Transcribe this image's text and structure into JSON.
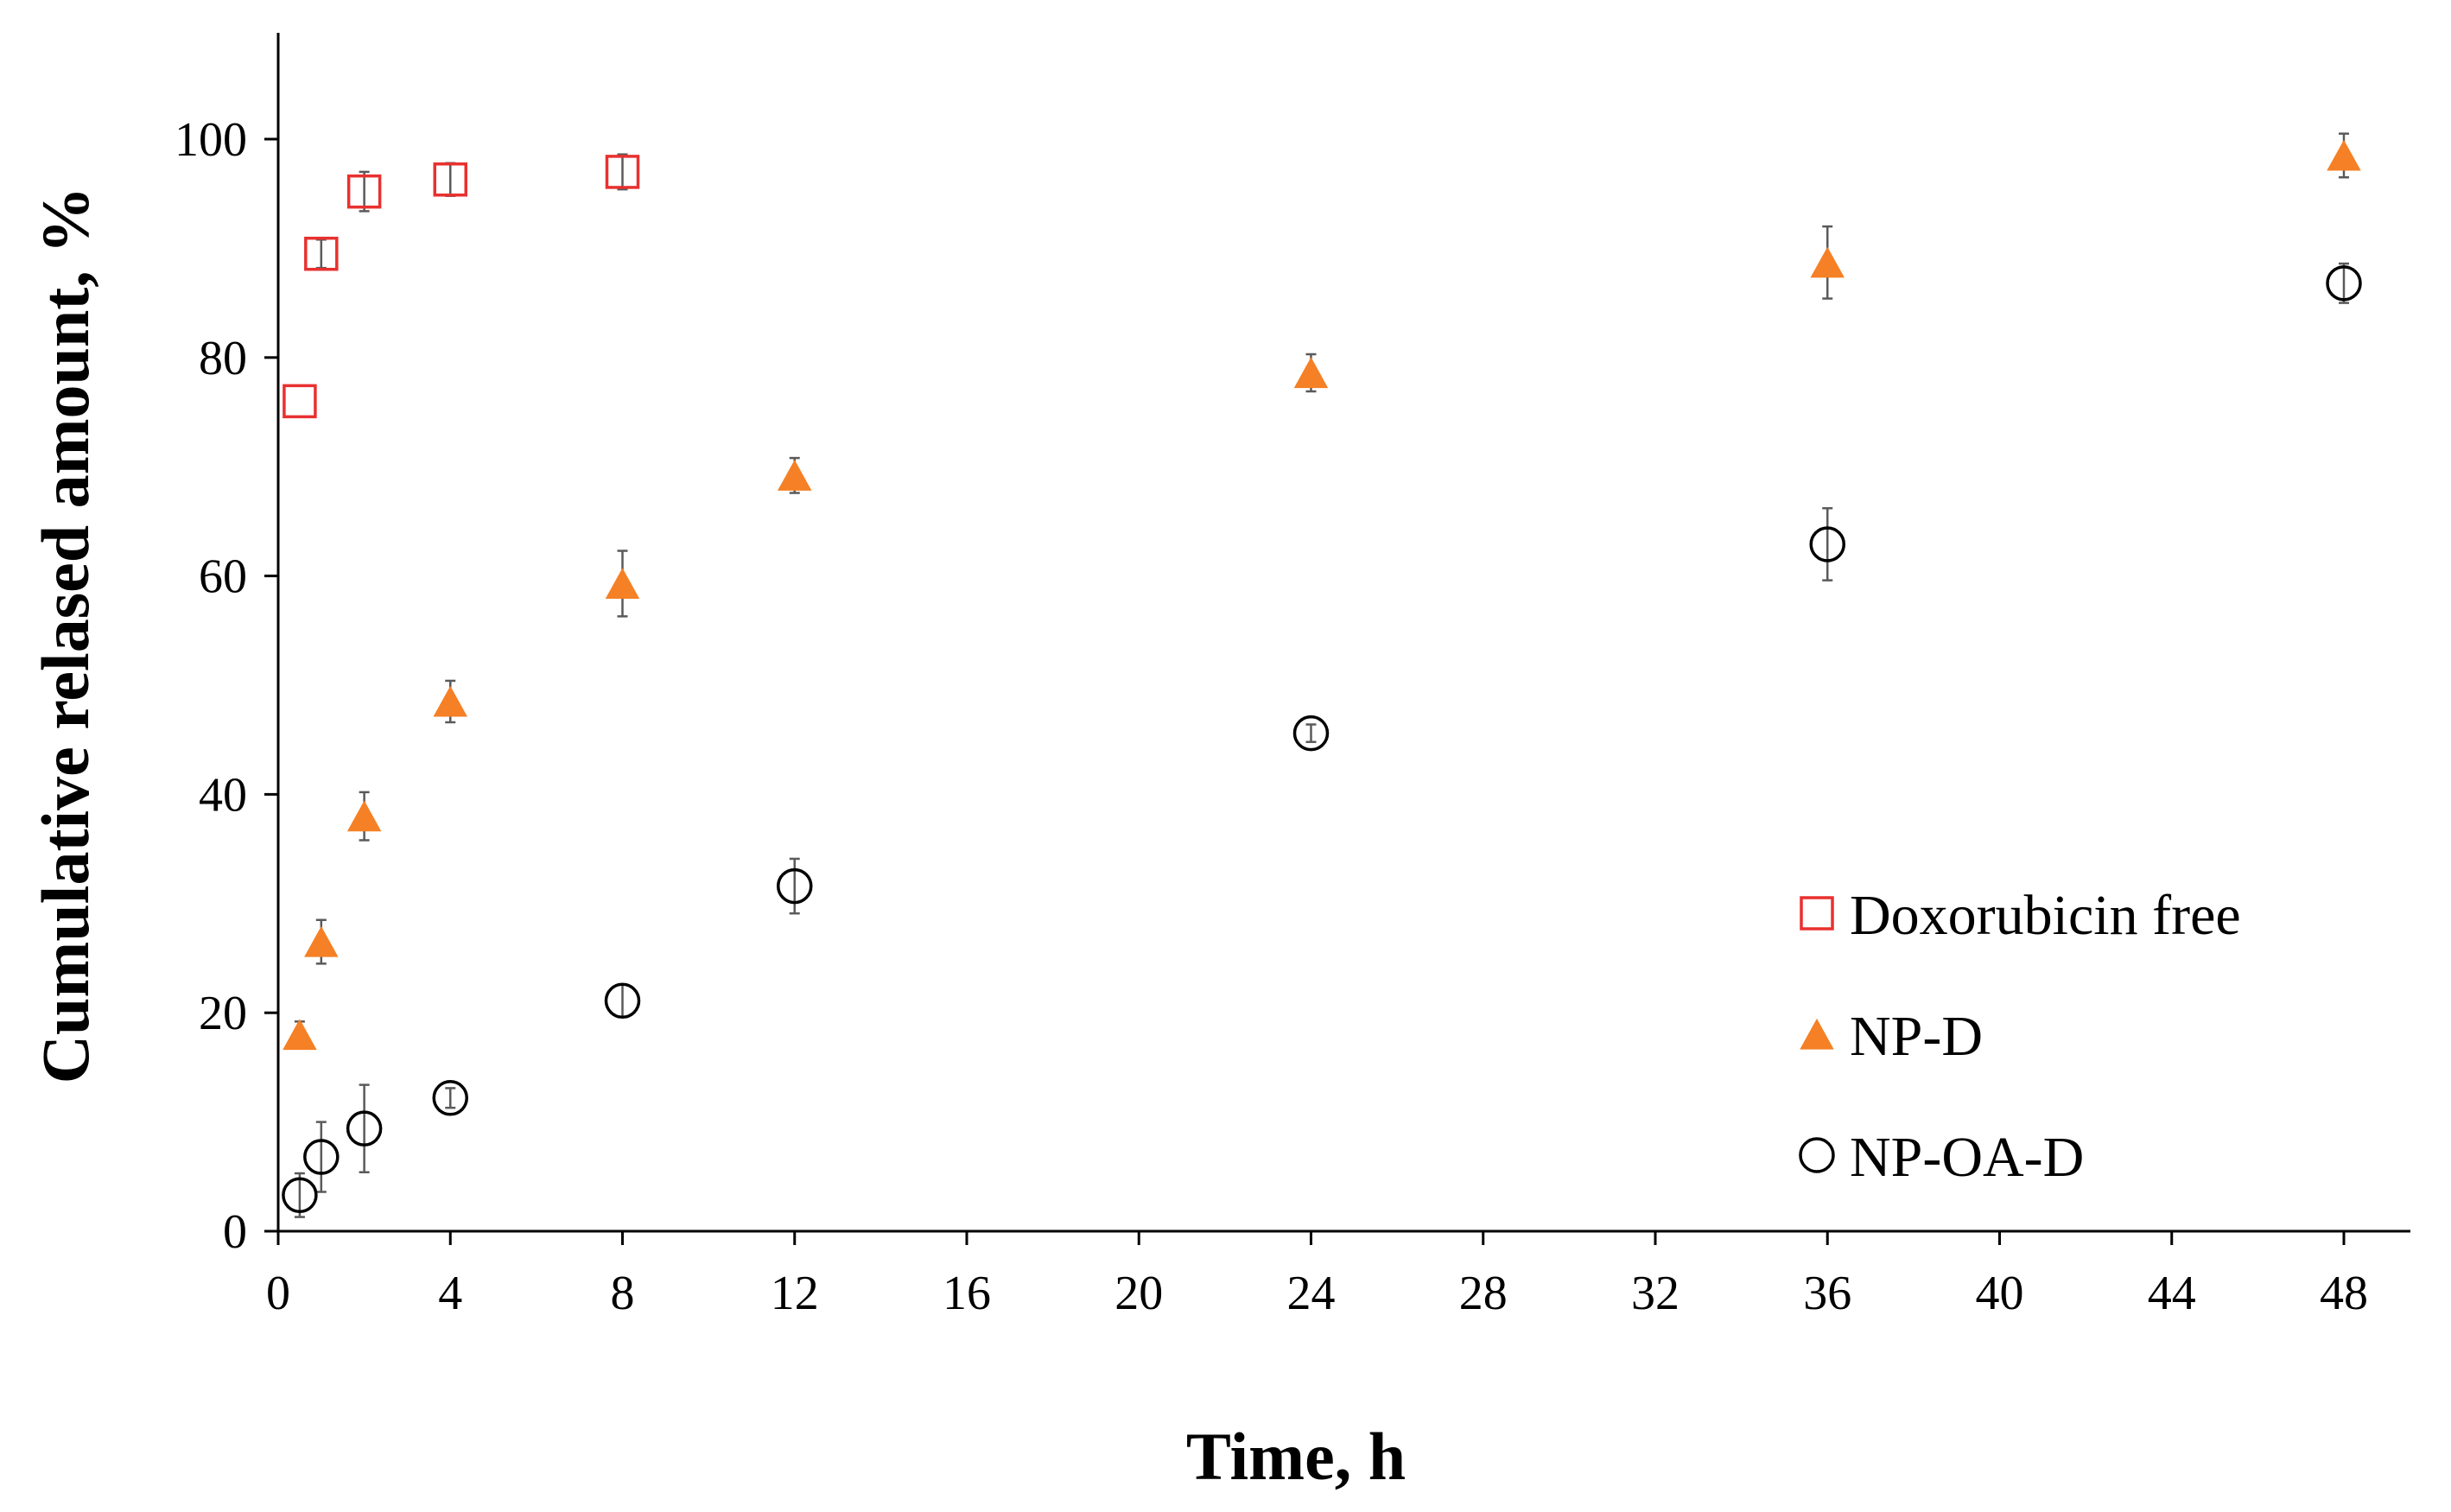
{
  "chart_data": {
    "type": "scatter",
    "xlabel": "Time, h",
    "ylabel": "Cumulative relased amount, %",
    "xlim": [
      0,
      50
    ],
    "ylim": [
      0,
      110
    ],
    "xticks": [
      0,
      4,
      8,
      12,
      16,
      20,
      24,
      28,
      32,
      36,
      40,
      44,
      48
    ],
    "yticks": [
      0,
      20,
      40,
      60,
      80,
      100
    ],
    "grid": false,
    "legend": "bottom-right",
    "series": [
      {
        "name": "Doxorubicin free",
        "marker": "open-square",
        "color": "#e8312f",
        "x": [
          0.5,
          1,
          2,
          4,
          8
        ],
        "y": [
          76,
          89.5,
          95.2,
          96.3,
          97.0
        ],
        "err": [
          0,
          1.3,
          1.8,
          1.5,
          1.6
        ]
      },
      {
        "name": "NP-D",
        "marker": "filled-triangle",
        "color": "#f58025",
        "x": [
          0.5,
          1,
          2,
          4,
          8,
          12,
          24,
          36,
          48
        ],
        "y": [
          18,
          26.5,
          38,
          48.5,
          59.3,
          69.2,
          78.6,
          88.7,
          98.5
        ],
        "err": [
          1.2,
          2.0,
          2.2,
          1.9,
          3.0,
          1.6,
          1.7,
          3.3,
          2.0
        ]
      },
      {
        "name": "NP-OA-D",
        "marker": "open-circle",
        "color": "#000000",
        "x": [
          0.5,
          1,
          2,
          4,
          8,
          12,
          24,
          36,
          48
        ],
        "y": [
          3.3,
          6.8,
          9.4,
          12.2,
          21.1,
          31.6,
          45.6,
          62.9,
          86.8
        ],
        "err": [
          2.0,
          3.2,
          4.0,
          0.9,
          1.5,
          2.5,
          0.8,
          3.3,
          1.8
        ]
      }
    ]
  }
}
